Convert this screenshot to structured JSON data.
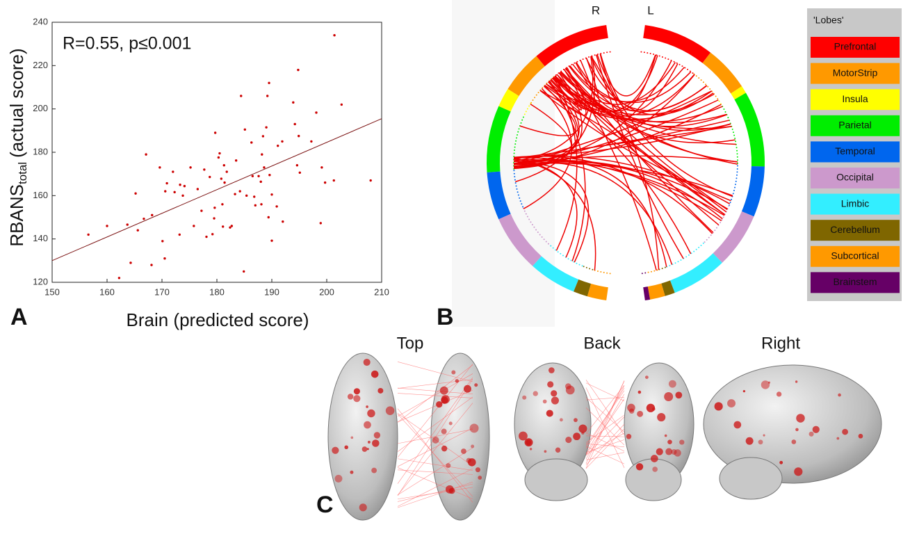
{
  "chart_data": [
    {
      "type": "scatter",
      "annotation": "R=0.55, p≤0.001",
      "x_label": "Brain (predicted score)",
      "y_label": {
        "main": "RBANS",
        "subscript": "total",
        "suffix": "(actual score)"
      },
      "color": "#cc0000",
      "xlim": [
        150,
        210
      ],
      "ylim": [
        120,
        240
      ],
      "xticks": [
        150,
        160,
        170,
        180,
        190,
        200,
        210
      ],
      "yticks": [
        120,
        140,
        160,
        180,
        200,
        220,
        240
      ],
      "x": [
        156.6,
        160,
        162.2,
        163.7,
        164.3,
        165.2,
        165.6,
        166.7,
        167.1,
        168.1,
        168.2,
        169.6,
        170.1,
        170.5,
        170.6,
        170.9,
        172,
        172.3,
        173.2,
        173.3,
        174.1,
        173.8,
        175.2,
        175.8,
        176.5,
        177.2,
        177.7,
        178.1,
        178.7,
        179.2,
        179.5,
        179.6,
        179.7,
        180.3,
        180.5,
        180.8,
        181,
        181.1,
        181.3,
        181.4,
        181.8,
        182.4,
        182.7,
        183.3,
        183.5,
        184.2,
        184.4,
        184.9,
        185.1,
        185.4,
        186.3,
        186.5,
        186.8,
        187,
        187.6,
        188,
        188.1,
        188.2,
        188.4,
        188.6,
        189,
        189.4,
        189.2,
        189.5,
        189.6,
        190,
        190,
        190.9,
        191.1,
        191.9,
        192,
        193.9,
        194.2,
        194.6,
        194.8,
        194.9,
        195.1,
        197.2,
        198.1,
        198.9,
        199.1,
        199.7,
        201.3,
        201.4,
        202.7,
        208
      ],
      "y": [
        142,
        146,
        122,
        146.6,
        129,
        161,
        144,
        149.3,
        179,
        128,
        151,
        173,
        139,
        131,
        162,
        165.7,
        171,
        161.6,
        142,
        165,
        164.4,
        160,
        173,
        146,
        163,
        153,
        172,
        141,
        168.6,
        142.2,
        149.5,
        154.4,
        189,
        177.6,
        179.5,
        167.8,
        156,
        145.7,
        174,
        166,
        171,
        145.3,
        146,
        160.7,
        176.2,
        162,
        206,
        125,
        190.5,
        160,
        184.5,
        169,
        159.5,
        155.5,
        169,
        166.4,
        156,
        179,
        187.4,
        173,
        191.5,
        150,
        206,
        212,
        169.5,
        139.2,
        160.5,
        155,
        183,
        185,
        148,
        203,
        193,
        174,
        218,
        187.5,
        170.6,
        185,
        198.3,
        147.3,
        173,
        166,
        167,
        234,
        202,
        167
      ],
      "fit_line": {
        "x": [
          150,
          210
        ],
        "y": [
          130,
          195.5
        ]
      }
    },
    {
      "type": "chord",
      "side_labels": [
        "R",
        "L"
      ],
      "legend_title": "'Lobes'",
      "lobes": [
        {
          "name": "Prefrontal",
          "color": "#ff0000"
        },
        {
          "name": "MotorStrip",
          "color": "#ff9900"
        },
        {
          "name": "Insula",
          "color": "#ffff00"
        },
        {
          "name": "Parietal",
          "color": "#00ee00"
        },
        {
          "name": "Temporal",
          "color": "#0066ee"
        },
        {
          "name": "Occipital",
          "color": "#cc99cc"
        },
        {
          "name": "Limbic",
          "color": "#33eeff"
        },
        {
          "name": "Cerebellum",
          "color": "#7f6600"
        },
        {
          "name": "Subcortical",
          "color": "#ff9900"
        },
        {
          "name": "Brainstem",
          "color": "#660066"
        }
      ],
      "link_color": "#ee0000"
    }
  ],
  "panel_labels": [
    "A",
    "B",
    "C"
  ],
  "views": [
    "Top",
    "Back",
    "Right"
  ]
}
